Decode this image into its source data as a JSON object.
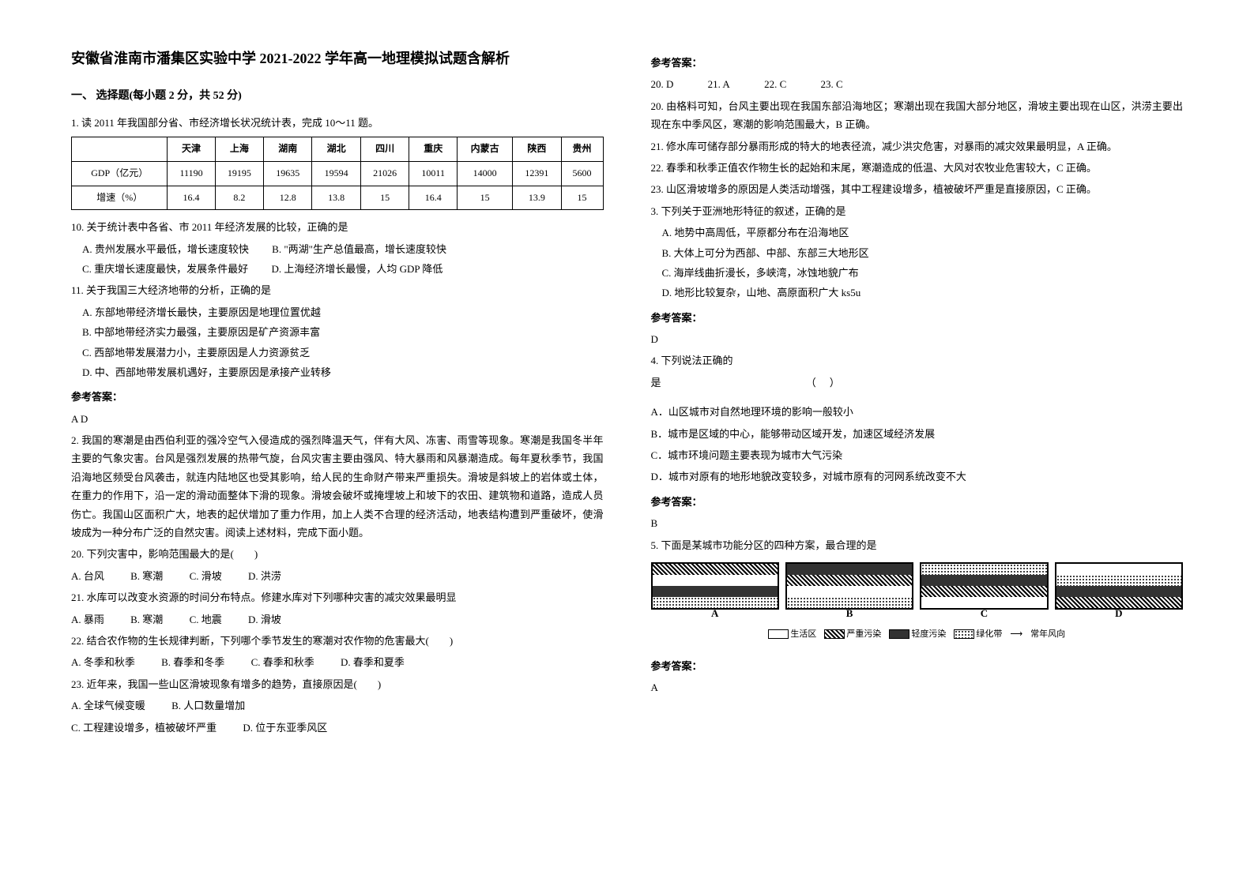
{
  "title": "安徽省淮南市潘集区实验中学 2021-2022 学年高一地理模拟试题含解析",
  "section1_heading": "一、 选择题(每小题 2 分，共 52 分)",
  "q1_intro": "1. 读 2011 年我国部分省、市经济增长状况统计表，完成 10～11 题。",
  "table": {
    "columns": [
      "",
      "天津",
      "上海",
      "湖南",
      "湖北",
      "四川",
      "重庆",
      "内蒙古",
      "陕西",
      "贵州"
    ],
    "rows": [
      [
        "GDP（亿元）",
        "11190",
        "19195",
        "19635",
        "19594",
        "21026",
        "10011",
        "14000",
        "12391",
        "5600"
      ],
      [
        "增速（%）",
        "16.4",
        "8.2",
        "12.8",
        "13.8",
        "15",
        "16.4",
        "15",
        "13.9",
        "15"
      ]
    ]
  },
  "q10": "10. 关于统计表中各省、市 2011 年经济发展的比较，正确的是",
  "q10_opts": {
    "A": "A. 贵州发展水平最低，增长速度较快",
    "B": "B. \"两湖\"生产总值最高，增长速度较快",
    "C": "C. 重庆增长速度最快，发展条件最好",
    "D": "D. 上海经济增长最慢，人均 GDP 降低"
  },
  "q11": "11. 关于我国三大经济地带的分析，正确的是",
  "q11_opts": {
    "A": "A. 东部地带经济增长最快，主要原因是地理位置优越",
    "B": "B. 中部地带经济实力最强，主要原因是矿产资源丰富",
    "C": "C. 西部地带发展潜力小，主要原因是人力资源贫乏",
    "D": "D. 中、西部地带发展机遇好，主要原因是承接产业转移"
  },
  "ans1_label": "参考答案：",
  "ans1": "A D",
  "q2_para": "2. 我国的寒潮是由西伯利亚的强冷空气入侵造成的强烈降温天气，伴有大风、冻害、雨雪等现象。寒潮是我国冬半年主要的气象灾害。台风是强烈发展的热带气旋，台风灾害主要由强风、特大暴雨和风暴潮造成。每年夏秋季节，我国沿海地区频受台风袭击，就连内陆地区也受其影响，给人民的生命财产带来严重损失。滑坡是斜坡上的岩体或土体，在重力的作用下，沿一定的滑动面整体下滑的现象。滑坡会破坏或掩埋坡上和坡下的农田、建筑物和道路，造成人员伤亡。我国山区面积广大，地表的起伏增加了重力作用，加上人类不合理的经济活动，地表结构遭到严重破坏，使滑坡成为一种分布广泛的自然灾害。阅读上述材料，完成下面小题。",
  "q20": "20. 下列灾害中，影响范围最大的是(　　)",
  "q20_opts": {
    "A": "A. 台风",
    "B": "B. 寒潮",
    "C": "C. 滑坡",
    "D": "D. 洪涝"
  },
  "q21": "21. 水库可以改变水资源的时间分布特点。修建水库对下列哪种灾害的减灾效果最明显",
  "q21_opts": {
    "A": "A. 暴雨",
    "B": "B. 寒潮",
    "C": "C. 地震",
    "D": "D. 滑坡"
  },
  "q22": "22. 结合农作物的生长规律判断，下列哪个季节发生的寒潮对农作物的危害最大(　　)",
  "q22_opts": {
    "A": "A. 冬季和秋季",
    "B": "B. 春季和冬季",
    "C": "C. 春季和秋季",
    "D": "D. 春季和夏季"
  },
  "q23": "23. 近年来，我国一些山区滑坡现象有增多的趋势，直接原因是(　　)",
  "q23_opts": {
    "A": "A. 全球气候变暖",
    "B": "B. 人口数量增加",
    "C": "C. 工程建设增多，植被破坏严重",
    "D": "D. 位于东亚季风区"
  },
  "ans2_label": "参考答案：",
  "ans2_row": {
    "a20": "20. D",
    "a21": "21. A",
    "a22": "22. C",
    "a23": "23. C"
  },
  "expl20": "20. 由格料可知，台风主要出现在我国东部沿海地区；寒潮出现在我国大部分地区，滑坡主要出现在山区，洪涝主要出现在东中季风区，寒潮的影响范围最大，B 正确。",
  "expl21": "21. 修水库可储存部分暴雨形成的特大的地表径流，减少洪灾危害，对暴雨的减灾效果最明显，A 正确。",
  "expl22": "22. 春季和秋季正值农作物生长的起始和末尾，寒潮造成的低温、大风对农牧业危害较大，C 正确。",
  "expl23": "23. 山区滑坡增多的原因是人类活动增强，其中工程建设增多，植被破坏严重是直接原因，C 正确。",
  "q3": "3. 下列关于亚洲地形特征的叙述，正确的是",
  "q3_opts": {
    "A": "A. 地势中高周低，平原都分布在沿海地区",
    "B": "B. 大体上可分为西部、中部、东部三大地形区",
    "C": "C. 海岸线曲折漫长，多峡湾，冰蚀地貌广布",
    "D": "D. 地形比较复杂，山地、高原面积广大 ks5u"
  },
  "ans3_label": "参考答案：",
  "ans3": "D",
  "q4_line1": "4. 下列说法正确的",
  "q4_line2": "是",
  "q4_paren": "（　）",
  "q4_opts": {
    "A": "A．山区城市对自然地理环境的影响一般较小",
    "B": "B．城市是区域的中心，能够带动区域开发，加速区域经济发展",
    "C": "C．城市环境问题主要表现为城市大气污染",
    "D": "D．城市对原有的地形地貌改变较多，对城市原有的河网系统改变不大"
  },
  "ans4_label": "参考答案：",
  "ans4": "B",
  "q5": "5. 下面是某城市功能分区的四种方案，最合理的是",
  "plan_labels": {
    "A": "A",
    "B": "B",
    "C": "C",
    "D": "D"
  },
  "legend": {
    "l1": "生活区",
    "l2": "严重污染",
    "l3": "轻度污染",
    "l4": "绿化带",
    "l5": "常年风向"
  },
  "ans5_label": "参考答案：",
  "ans5": "A"
}
